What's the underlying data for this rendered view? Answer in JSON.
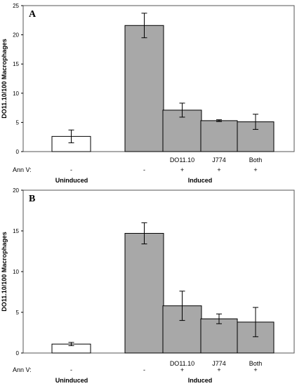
{
  "chart_data": [
    {
      "type": "bar",
      "panel_label": "A",
      "ylabel": "DO11.10/100 Macrophages",
      "ylim": [
        0,
        25
      ],
      "yticks": [
        0,
        5,
        10,
        15,
        20,
        25
      ],
      "categories": [
        "",
        "",
        "DO11.10",
        "J774",
        "Both"
      ],
      "values": [
        2.6,
        21.6,
        7.1,
        5.3,
        5.1
      ],
      "errors": [
        1.1,
        2.1,
        1.2,
        0.15,
        1.3
      ],
      "bar_colors": [
        "#ffffff",
        "#a8a8a8",
        "#a8a8a8",
        "#a8a8a8",
        "#a8a8a8"
      ],
      "row_label": "Ann V:",
      "annv": [
        "-",
        "-",
        "+",
        "+",
        "+"
      ],
      "groups": [
        "Uninduced",
        "Induced"
      ]
    },
    {
      "type": "bar",
      "panel_label": "B",
      "ylabel": "DO11.10/100 Macrophages",
      "ylim": [
        0,
        20
      ],
      "yticks": [
        0,
        5,
        10,
        15,
        20
      ],
      "categories": [
        "",
        "",
        "DO11.10",
        "J774",
        "Both"
      ],
      "values": [
        1.1,
        14.7,
        5.8,
        4.2,
        3.8
      ],
      "errors": [
        0.2,
        1.3,
        1.8,
        0.6,
        1.8
      ],
      "bar_colors": [
        "#ffffff",
        "#a8a8a8",
        "#a8a8a8",
        "#a8a8a8",
        "#a8a8a8"
      ],
      "row_label": "Ann V:",
      "annv": [
        "-",
        "-",
        "+",
        "+",
        "+"
      ],
      "groups": [
        "Uninduced",
        "Induced"
      ]
    }
  ]
}
